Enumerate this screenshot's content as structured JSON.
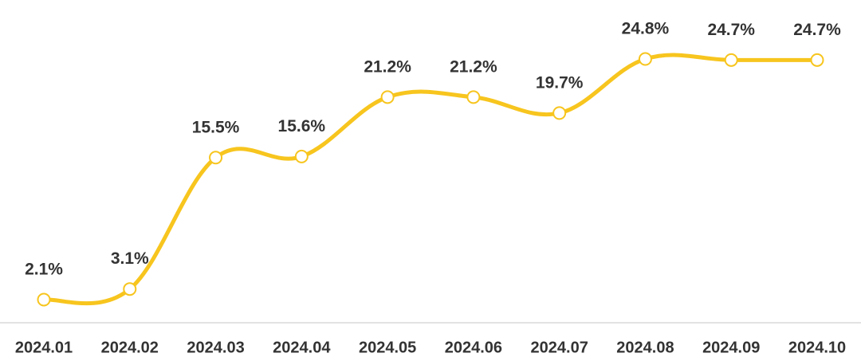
{
  "chart_data": {
    "type": "line",
    "categories": [
      "2024.01",
      "2024.02",
      "2024.03",
      "2024.04",
      "2024.05",
      "2024.06",
      "2024.07",
      "2024.08",
      "2024.09",
      "2024.10"
    ],
    "values": [
      2.1,
      3.1,
      15.5,
      15.6,
      21.2,
      21.2,
      19.7,
      24.8,
      24.7,
      24.7
    ],
    "value_labels": [
      "2.1%",
      "3.1%",
      "15.5%",
      "15.6%",
      "21.2%",
      "21.2%",
      "19.7%",
      "24.8%",
      "24.7%",
      "24.7%"
    ],
    "color": "#f7c51e"
  }
}
